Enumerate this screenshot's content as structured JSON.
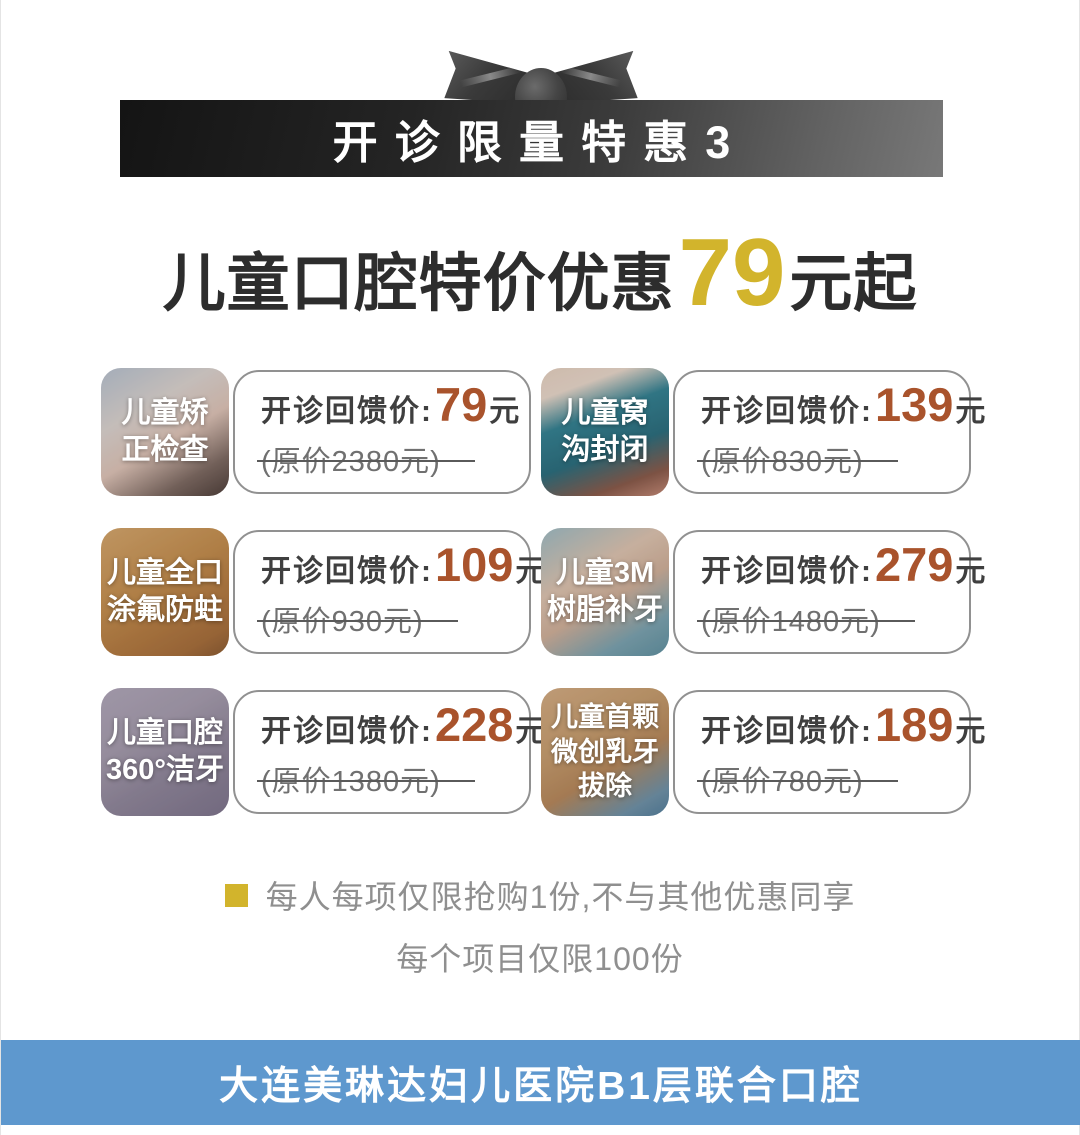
{
  "ribbon": {
    "banner_text": "开诊限量特惠3"
  },
  "headline": {
    "prefix": "儿童口腔特价优惠",
    "highlight": "79",
    "suffix": "元起"
  },
  "cards": [
    {
      "photo": "child-open-mouth-orthodontic-exam",
      "name_l1": "儿童矫",
      "name_l2": "正检查",
      "name_l3": "",
      "price_label": "开诊回馈价:",
      "price": "79",
      "unit": "元",
      "original": "(原价2380元)"
    },
    {
      "photo": "child-teal-dental-dam",
      "name_l1": "儿童窝",
      "name_l2": "沟封闭",
      "name_l3": "",
      "price_label": "开诊回馈价:",
      "price": "139",
      "unit": "元",
      "original": "(原价830元)"
    },
    {
      "photo": "girl-pointing-at-mouth-warm-tone",
      "name_l1": "儿童全口",
      "name_l2": "涂氟防蛀",
      "name_l3": "",
      "price_label": "开诊回馈价:",
      "price": "109",
      "unit": "元",
      "original": "(原价930元)"
    },
    {
      "photo": "child-in-dental-chair-open-mouth",
      "name_l1": "儿童3M",
      "name_l2": "树脂补牙",
      "name_l3": "",
      "price_label": "开诊回馈价:",
      "price": "279",
      "unit": "元",
      "original": "(原价1480元)"
    },
    {
      "photo": "curly-haired-child-smiling",
      "name_l1": "儿童口腔",
      "name_l2": "360°洁牙",
      "name_l3": "",
      "price_label": "开诊回馈价:",
      "price": "228",
      "unit": "元",
      "original": "(原价1380元)"
    },
    {
      "photo": "child-tooth-extraction-blue-gloves",
      "name_l1": "儿童首颗",
      "name_l2": "微创乳牙",
      "name_l3": "拔除",
      "price_label": "开诊回馈价:",
      "price": "189",
      "unit": "元",
      "original": "(原价780元)"
    }
  ],
  "notes": {
    "line1": "每人每项仅限抢购1份,不与其他优惠同享",
    "line2": "每个项目仅限100份"
  },
  "footer": {
    "text": "大连美琳达妇儿医院B1层联合口腔"
  },
  "colors": {
    "gold": "#d2b42c",
    "price": "#a9532c",
    "footer-blue": "#5e98ce",
    "note": "#8f8f8f"
  }
}
